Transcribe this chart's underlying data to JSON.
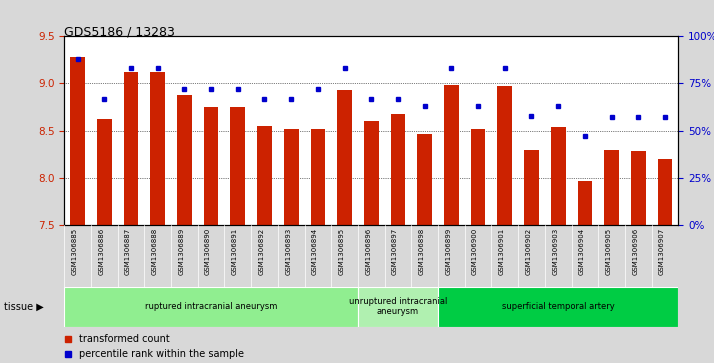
{
  "title": "GDS5186 / 13283",
  "samples": [
    "GSM1306885",
    "GSM1306886",
    "GSM1306887",
    "GSM1306888",
    "GSM1306889",
    "GSM1306890",
    "GSM1306891",
    "GSM1306892",
    "GSM1306893",
    "GSM1306894",
    "GSM1306895",
    "GSM1306896",
    "GSM1306897",
    "GSM1306898",
    "GSM1306899",
    "GSM1306900",
    "GSM1306901",
    "GSM1306902",
    "GSM1306903",
    "GSM1306904",
    "GSM1306905",
    "GSM1306906",
    "GSM1306907"
  ],
  "transformed_count": [
    9.28,
    8.62,
    9.12,
    9.12,
    8.88,
    8.75,
    8.75,
    8.55,
    8.52,
    8.52,
    8.93,
    8.6,
    8.68,
    8.47,
    8.98,
    8.52,
    8.97,
    8.3,
    8.54,
    7.97,
    8.3,
    8.28,
    8.2
  ],
  "percentile_rank": [
    88,
    67,
    83,
    83,
    72,
    72,
    72,
    67,
    67,
    72,
    83,
    67,
    67,
    63,
    83,
    63,
    83,
    58,
    63,
    47,
    57,
    57,
    57
  ],
  "groups": [
    {
      "label": "ruptured intracranial aneurysm",
      "start": 0,
      "end": 11,
      "color": "#90EE90"
    },
    {
      "label": "unruptured intracranial\naneurysm",
      "start": 11,
      "end": 14,
      "color": "#b0f0b0"
    },
    {
      "label": "superficial temporal artery",
      "start": 14,
      "end": 23,
      "color": "#00CC44"
    }
  ],
  "ylim_left": [
    7.5,
    9.5
  ],
  "ylim_right": [
    0,
    100
  ],
  "bar_color": "#CC2200",
  "dot_color": "#0000CC",
  "bg_color": "#D8D8D8",
  "plot_bg": "#FFFFFF",
  "label_color_left": "#CC2200",
  "label_color_right": "#0000CC",
  "yticks_left": [
    7.5,
    8.0,
    8.5,
    9.0,
    9.5
  ],
  "yticks_right": [
    0,
    25,
    50,
    75,
    100
  ],
  "ytick_labels_right": [
    "0%",
    "25%",
    "50%",
    "75%",
    "100%"
  ]
}
